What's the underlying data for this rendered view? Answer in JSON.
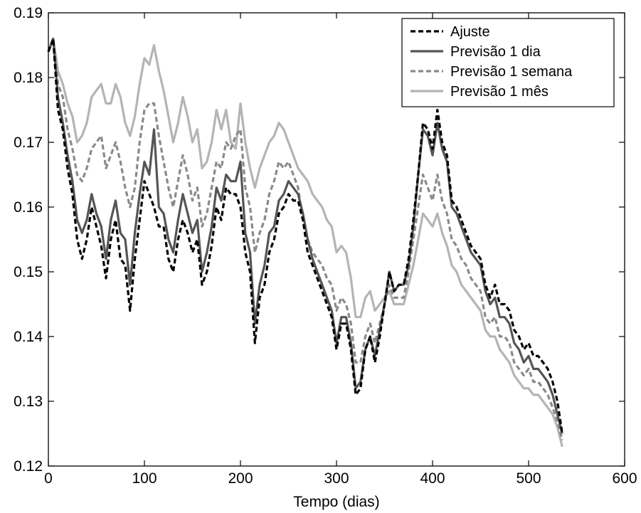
{
  "chart_data": {
    "type": "line",
    "xlabel": "Tempo (dias)",
    "ylabel": "",
    "xlim": [
      0,
      600
    ],
    "ylim": [
      0.12,
      0.19
    ],
    "x_ticks": [
      "0",
      "100",
      "200",
      "300",
      "400",
      "500",
      "600"
    ],
    "y_ticks": [
      "0.12",
      "0.13",
      "0.14",
      "0.15",
      "0.16",
      "0.17",
      "0.18",
      "0.19"
    ],
    "grid": false,
    "legend_position": "top-right",
    "series": [
      {
        "name": "Ajuste",
        "color": "#000000",
        "dash": "dashed",
        "x": [
          0,
          5,
          10,
          15,
          20,
          25,
          30,
          35,
          40,
          45,
          50,
          55,
          60,
          65,
          70,
          75,
          80,
          85,
          90,
          95,
          100,
          105,
          110,
          115,
          120,
          125,
          130,
          135,
          140,
          145,
          150,
          155,
          160,
          165,
          170,
          175,
          180,
          185,
          190,
          195,
          200,
          205,
          210,
          215,
          220,
          225,
          230,
          235,
          240,
          245,
          250,
          255,
          260,
          265,
          270,
          275,
          280,
          285,
          290,
          295,
          300,
          305,
          310,
          315,
          320,
          325,
          330,
          335,
          340,
          345,
          350,
          355,
          360,
          365,
          370,
          375,
          380,
          385,
          390,
          395,
          400,
          405,
          410,
          415,
          420,
          425,
          430,
          435,
          440,
          445,
          450,
          455,
          460,
          465,
          470,
          475,
          480,
          485,
          490,
          495,
          500,
          505,
          510,
          515,
          520,
          525,
          530,
          535
        ],
        "y": [
          0.184,
          0.186,
          0.175,
          0.172,
          0.166,
          0.162,
          0.155,
          0.152,
          0.155,
          0.16,
          0.157,
          0.154,
          0.149,
          0.155,
          0.158,
          0.152,
          0.151,
          0.144,
          0.152,
          0.158,
          0.164,
          0.162,
          0.16,
          0.157,
          0.157,
          0.152,
          0.15,
          0.155,
          0.158,
          0.156,
          0.153,
          0.155,
          0.148,
          0.15,
          0.154,
          0.16,
          0.158,
          0.163,
          0.162,
          0.162,
          0.16,
          0.153,
          0.15,
          0.139,
          0.146,
          0.148,
          0.153,
          0.155,
          0.159,
          0.16,
          0.162,
          0.161,
          0.161,
          0.158,
          0.153,
          0.151,
          0.149,
          0.147,
          0.145,
          0.143,
          0.138,
          0.142,
          0.142,
          0.138,
          0.131,
          0.132,
          0.138,
          0.14,
          0.136,
          0.14,
          0.145,
          0.15,
          0.147,
          0.148,
          0.148,
          0.152,
          0.158,
          0.165,
          0.173,
          0.172,
          0.169,
          0.175,
          0.17,
          0.168,
          0.161,
          0.16,
          0.158,
          0.156,
          0.154,
          0.153,
          0.152,
          0.148,
          0.146,
          0.148,
          0.145,
          0.145,
          0.144,
          0.141,
          0.14,
          0.138,
          0.139,
          0.137,
          0.137,
          0.136,
          0.135,
          0.133,
          0.13,
          0.125
        ]
      },
      {
        "name": "Previsão 1 dia",
        "color": "#555555",
        "dash": "solid",
        "x": [
          0,
          5,
          10,
          15,
          20,
          25,
          30,
          35,
          40,
          45,
          50,
          55,
          60,
          65,
          70,
          75,
          80,
          85,
          90,
          95,
          100,
          105,
          110,
          115,
          120,
          125,
          130,
          135,
          140,
          145,
          150,
          155,
          160,
          165,
          170,
          175,
          180,
          185,
          190,
          195,
          200,
          205,
          210,
          215,
          220,
          225,
          230,
          235,
          240,
          245,
          250,
          255,
          260,
          265,
          270,
          275,
          280,
          285,
          290,
          295,
          300,
          305,
          310,
          315,
          320,
          325,
          330,
          335,
          340,
          345,
          350,
          355,
          360,
          365,
          370,
          375,
          380,
          385,
          390,
          395,
          400,
          405,
          410,
          415,
          420,
          425,
          430,
          435,
          440,
          445,
          450,
          455,
          460,
          465,
          470,
          475,
          480,
          485,
          490,
          495,
          500,
          505,
          510,
          515,
          520,
          525,
          530,
          535
        ],
        "y": [
          0.184,
          0.186,
          0.177,
          0.173,
          0.168,
          0.164,
          0.158,
          0.156,
          0.158,
          0.162,
          0.159,
          0.157,
          0.152,
          0.158,
          0.161,
          0.156,
          0.155,
          0.148,
          0.156,
          0.162,
          0.167,
          0.165,
          0.172,
          0.16,
          0.159,
          0.155,
          0.153,
          0.158,
          0.162,
          0.159,
          0.156,
          0.158,
          0.15,
          0.153,
          0.157,
          0.163,
          0.161,
          0.165,
          0.164,
          0.164,
          0.167,
          0.156,
          0.153,
          0.142,
          0.148,
          0.151,
          0.156,
          0.157,
          0.161,
          0.162,
          0.164,
          0.163,
          0.162,
          0.159,
          0.155,
          0.152,
          0.15,
          0.148,
          0.146,
          0.144,
          0.139,
          0.143,
          0.143,
          0.139,
          0.132,
          0.133,
          0.138,
          0.14,
          0.137,
          0.141,
          0.145,
          0.15,
          0.147,
          0.148,
          0.148,
          0.151,
          0.157,
          0.165,
          0.172,
          0.171,
          0.168,
          0.173,
          0.169,
          0.167,
          0.16,
          0.159,
          0.157,
          0.155,
          0.153,
          0.152,
          0.151,
          0.147,
          0.145,
          0.146,
          0.143,
          0.143,
          0.142,
          0.139,
          0.138,
          0.136,
          0.137,
          0.135,
          0.135,
          0.134,
          0.133,
          0.131,
          0.128,
          0.125
        ]
      },
      {
        "name": "Previsão 1 semana",
        "color": "#8a8a8a",
        "dash": "dashed",
        "x": [
          0,
          5,
          10,
          15,
          20,
          25,
          30,
          35,
          40,
          45,
          50,
          55,
          60,
          65,
          70,
          75,
          80,
          85,
          90,
          95,
          100,
          105,
          110,
          115,
          120,
          125,
          130,
          135,
          140,
          145,
          150,
          155,
          160,
          165,
          170,
          175,
          180,
          185,
          190,
          195,
          200,
          205,
          210,
          215,
          220,
          225,
          230,
          235,
          240,
          245,
          250,
          255,
          260,
          265,
          270,
          275,
          280,
          285,
          290,
          295,
          300,
          305,
          310,
          315,
          320,
          325,
          330,
          335,
          340,
          345,
          350,
          355,
          360,
          365,
          370,
          375,
          380,
          385,
          390,
          395,
          400,
          405,
          410,
          415,
          420,
          425,
          430,
          435,
          440,
          445,
          450,
          455,
          460,
          465,
          470,
          475,
          480,
          485,
          490,
          495,
          500,
          505,
          510,
          515,
          520,
          525,
          530,
          535
        ],
        "y": [
          0.184,
          0.186,
          0.179,
          0.177,
          0.172,
          0.169,
          0.165,
          0.164,
          0.166,
          0.169,
          0.17,
          0.171,
          0.166,
          0.168,
          0.17,
          0.167,
          0.163,
          0.16,
          0.163,
          0.17,
          0.175,
          0.176,
          0.176,
          0.171,
          0.167,
          0.163,
          0.16,
          0.164,
          0.168,
          0.165,
          0.161,
          0.163,
          0.157,
          0.159,
          0.163,
          0.167,
          0.166,
          0.17,
          0.169,
          0.171,
          0.172,
          0.163,
          0.16,
          0.153,
          0.156,
          0.158,
          0.162,
          0.164,
          0.167,
          0.166,
          0.167,
          0.165,
          0.163,
          0.158,
          0.155,
          0.153,
          0.152,
          0.151,
          0.149,
          0.148,
          0.144,
          0.146,
          0.145,
          0.142,
          0.136,
          0.136,
          0.14,
          0.142,
          0.139,
          0.142,
          0.145,
          0.148,
          0.146,
          0.146,
          0.146,
          0.15,
          0.155,
          0.16,
          0.165,
          0.163,
          0.161,
          0.165,
          0.161,
          0.159,
          0.155,
          0.154,
          0.152,
          0.151,
          0.149,
          0.148,
          0.147,
          0.143,
          0.142,
          0.143,
          0.14,
          0.14,
          0.139,
          0.136,
          0.135,
          0.134,
          0.135,
          0.133,
          0.133,
          0.132,
          0.131,
          0.129,
          0.127,
          0.124
        ]
      },
      {
        "name": "Previsão 1 mês",
        "color": "#b4b4b4",
        "dash": "solid",
        "x": [
          0,
          5,
          10,
          15,
          20,
          25,
          30,
          35,
          40,
          45,
          50,
          55,
          60,
          65,
          70,
          75,
          80,
          85,
          90,
          95,
          100,
          105,
          110,
          115,
          120,
          125,
          130,
          135,
          140,
          145,
          150,
          155,
          160,
          165,
          170,
          175,
          180,
          185,
          190,
          195,
          200,
          205,
          210,
          215,
          220,
          225,
          230,
          235,
          240,
          245,
          250,
          255,
          260,
          265,
          270,
          275,
          280,
          285,
          290,
          295,
          300,
          305,
          310,
          315,
          320,
          325,
          330,
          335,
          340,
          345,
          350,
          355,
          360,
          365,
          370,
          375,
          380,
          385,
          390,
          395,
          400,
          405,
          410,
          415,
          420,
          425,
          430,
          435,
          440,
          445,
          450,
          455,
          460,
          465,
          470,
          475,
          480,
          485,
          490,
          495,
          500,
          505,
          510,
          515,
          520,
          525,
          530,
          535
        ],
        "y": [
          0.184,
          0.186,
          0.181,
          0.179,
          0.176,
          0.174,
          0.17,
          0.171,
          0.173,
          0.177,
          0.178,
          0.179,
          0.176,
          0.176,
          0.179,
          0.177,
          0.173,
          0.171,
          0.174,
          0.179,
          0.183,
          0.182,
          0.185,
          0.181,
          0.178,
          0.174,
          0.17,
          0.173,
          0.177,
          0.174,
          0.17,
          0.172,
          0.166,
          0.167,
          0.17,
          0.175,
          0.172,
          0.175,
          0.17,
          0.169,
          0.176,
          0.17,
          0.166,
          0.163,
          0.166,
          0.168,
          0.17,
          0.171,
          0.173,
          0.172,
          0.17,
          0.168,
          0.166,
          0.165,
          0.164,
          0.162,
          0.161,
          0.16,
          0.158,
          0.157,
          0.153,
          0.154,
          0.153,
          0.149,
          0.143,
          0.143,
          0.146,
          0.147,
          0.144,
          0.145,
          0.146,
          0.147,
          0.145,
          0.145,
          0.145,
          0.148,
          0.151,
          0.155,
          0.159,
          0.158,
          0.157,
          0.159,
          0.156,
          0.154,
          0.151,
          0.15,
          0.148,
          0.147,
          0.146,
          0.145,
          0.144,
          0.141,
          0.14,
          0.14,
          0.138,
          0.137,
          0.136,
          0.134,
          0.133,
          0.132,
          0.132,
          0.131,
          0.131,
          0.13,
          0.129,
          0.128,
          0.126,
          0.123
        ]
      }
    ]
  }
}
